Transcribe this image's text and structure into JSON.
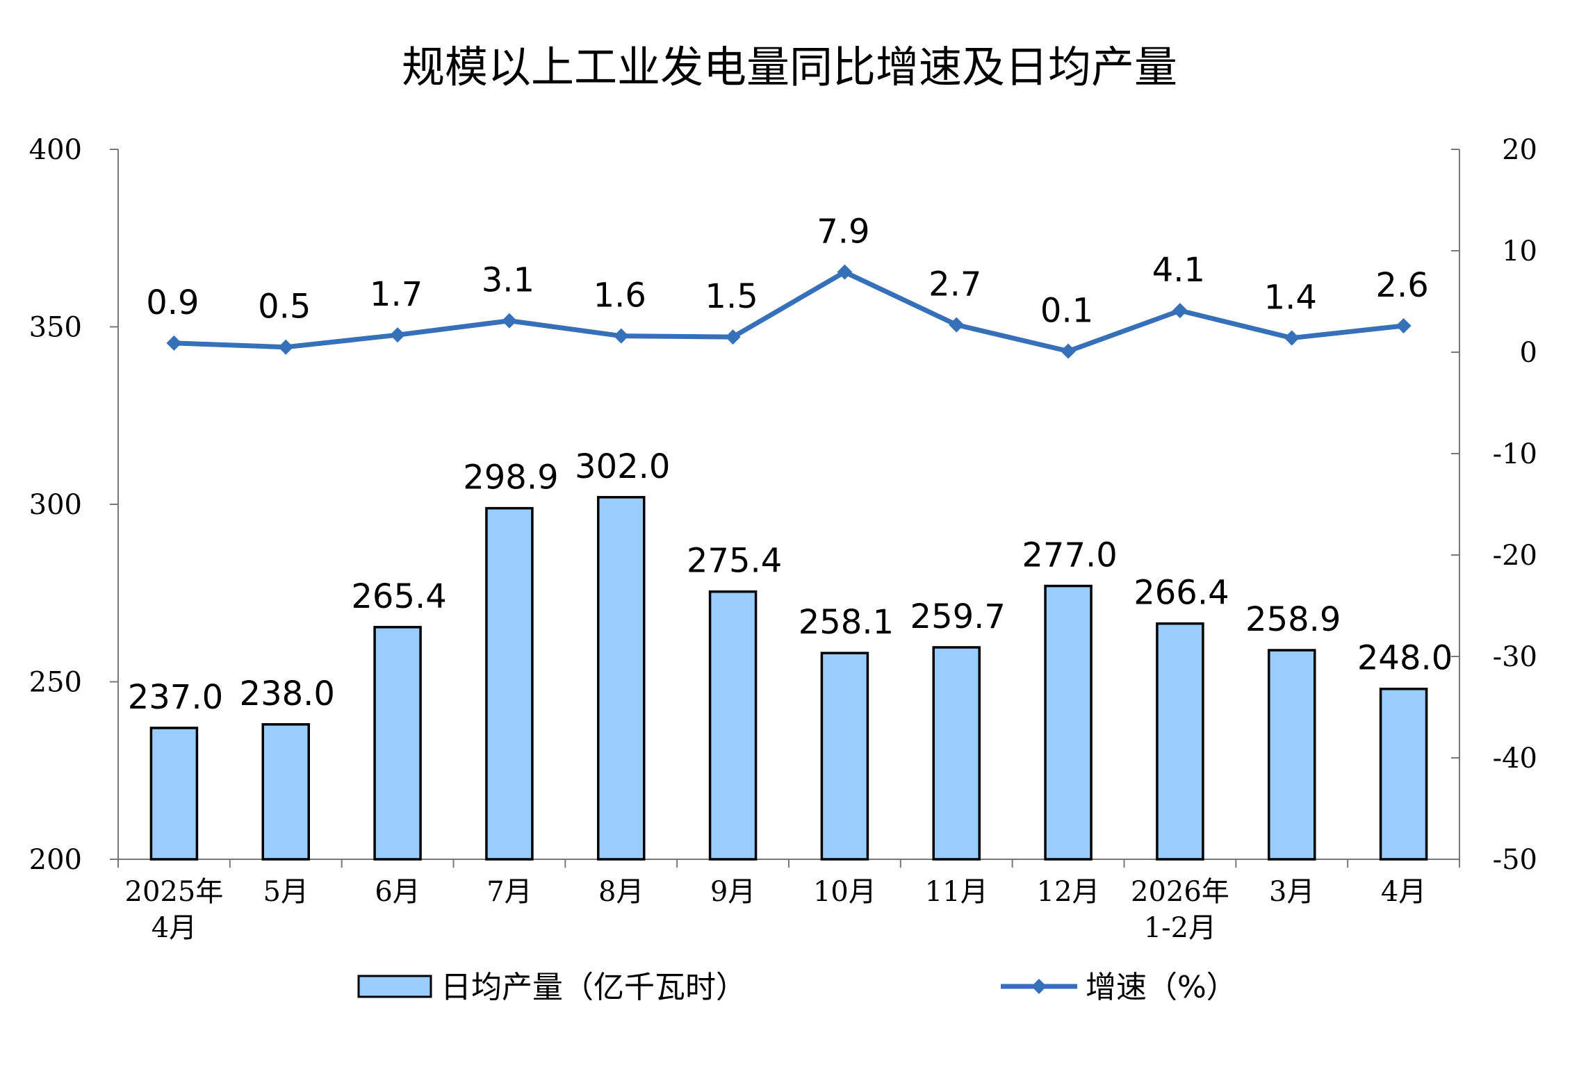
{
  "chart_data": {
    "type": "bar+line",
    "title": "规模以上工业发电量同比增速及日均产量",
    "categories": [
      [
        "2025年",
        "4月"
      ],
      [
        "5月"
      ],
      [
        "6月"
      ],
      [
        "7月"
      ],
      [
        "8月"
      ],
      [
        "9月"
      ],
      [
        "10月"
      ],
      [
        "11月"
      ],
      [
        "12月"
      ],
      [
        "2026年",
        "1-2月"
      ],
      [
        "3月"
      ],
      [
        "4月"
      ]
    ],
    "series": [
      {
        "name": "日均产量（亿千瓦时）",
        "type": "bar",
        "axis": "left",
        "values": [
          237.0,
          238.0,
          265.4,
          298.9,
          302.0,
          275.4,
          258.1,
          259.7,
          277.0,
          266.4,
          258.9,
          248.0
        ],
        "labels": [
          "237.0",
          "238.0",
          "265.4",
          "298.9",
          "302.0",
          "275.4",
          "258.1",
          "259.7",
          "277.0",
          "266.4",
          "258.9",
          "248.0"
        ],
        "color": "#99ccff"
      },
      {
        "name": "增速（%）",
        "type": "line",
        "axis": "right",
        "values": [
          0.9,
          0.5,
          1.7,
          3.1,
          1.6,
          1.5,
          7.9,
          2.7,
          0.1,
          4.1,
          1.4,
          2.6
        ],
        "labels": [
          "0.9",
          "0.5",
          "1.7",
          "3.1",
          "1.6",
          "1.5",
          "7.9",
          "2.7",
          "0.1",
          "4.1",
          "1.4",
          "2.6"
        ],
        "color": "#3570b8"
      }
    ],
    "y_left": {
      "ylim": [
        200,
        400
      ],
      "ticks": [
        "200",
        "250",
        "300",
        "350",
        "400"
      ]
    },
    "y_right": {
      "ylim": [
        -50,
        20
      ],
      "ticks": [
        "-50",
        "-40",
        "-30",
        "-20",
        "-10",
        "0",
        "10",
        "20"
      ]
    },
    "grid": false,
    "legend_position": "bottom"
  }
}
